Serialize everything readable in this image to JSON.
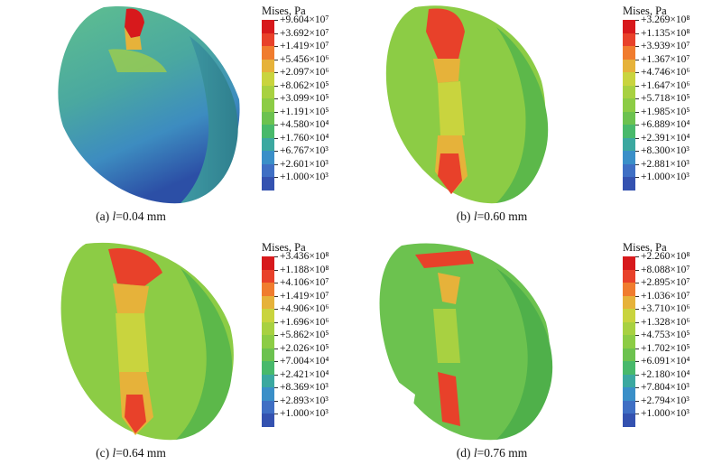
{
  "legend_title": "Mises, Pa",
  "legend_colors": [
    "#d7191c",
    "#e8412a",
    "#f07c2e",
    "#e6b23a",
    "#c9d43e",
    "#a8d141",
    "#8ccc45",
    "#6cc24f",
    "#48b96b",
    "#3ba8a0",
    "#3a8fc8",
    "#3f6fc4",
    "#3452b0"
  ],
  "panels": [
    {
      "caption_prefix": "(a) ",
      "caption_var": "l",
      "caption_rest": "=0.04 mm",
      "labels": [
        "+9.604×10⁷",
        "+3.692×10⁷",
        "+1.419×10⁷",
        "+5.456×10⁶",
        "+2.097×10⁶",
        "+8.062×10⁵",
        "+3.099×10⁵",
        "+1.191×10⁵",
        "+4.580×10⁴",
        "+1.760×10⁴",
        "+6.767×10³",
        "+2.601×10³",
        "+1.000×10³"
      ]
    },
    {
      "caption_prefix": "(b) ",
      "caption_var": "l",
      "caption_rest": "=0.60 mm",
      "labels": [
        "+3.269×10⁸",
        "+1.135×10⁸",
        "+3.939×10⁷",
        "+1.367×10⁷",
        "+4.746×10⁶",
        "+1.647×10⁶",
        "+5.718×10⁵",
        "+1.985×10⁵",
        "+6.889×10⁴",
        "+2.391×10⁴",
        "+8.300×10³",
        "+2.881×10³",
        "+1.000×10³"
      ]
    },
    {
      "caption_prefix": "(c) ",
      "caption_var": "l",
      "caption_rest": "=0.64 mm",
      "labels": [
        "+3.436×10⁸",
        "+1.188×10⁸",
        "+4.106×10⁷",
        "+1.419×10⁷",
        "+4.906×10⁶",
        "+1.696×10⁶",
        "+5.862×10⁵",
        "+2.026×10⁵",
        "+7.004×10⁴",
        "+2.421×10⁴",
        "+8.369×10³",
        "+2.893×10³",
        "+1.000×10³"
      ]
    },
    {
      "caption_prefix": "(d) ",
      "caption_var": "l",
      "caption_rest": "=0.76 mm",
      "labels": [
        "+2.260×10⁸",
        "+8.088×10⁷",
        "+2.895×10⁷",
        "+1.036×10⁷",
        "+3.710×10⁶",
        "+1.328×10⁶",
        "+4.753×10⁵",
        "+1.702×10⁵",
        "+6.091×10⁴",
        "+2.180×10⁴",
        "+7.804×10³",
        "+2.794×10³",
        "+1.000×10³"
      ]
    }
  ]
}
